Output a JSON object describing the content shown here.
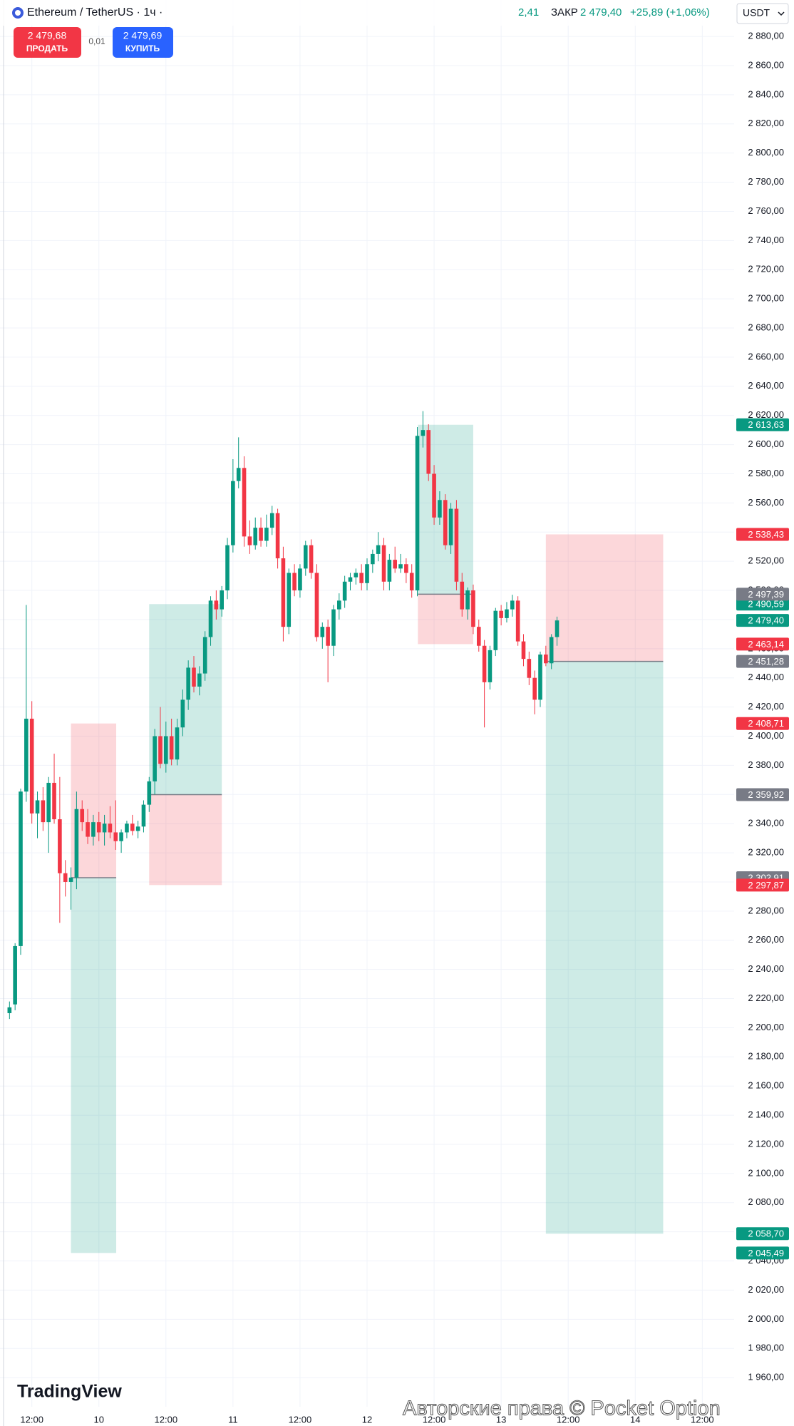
{
  "header": {
    "symbol": "Ethereum / TetherUS · 1ч ·",
    "change_fragment": "2,41",
    "close_label": "ЗАКР",
    "close": "2 479,40",
    "change": "+25,89 (+1,06%)",
    "currency": "USDT"
  },
  "trade": {
    "sell_price": "2 479,68",
    "sell": "ПРОДАТЬ",
    "spread": "0,01",
    "buy_price": "2 479,69",
    "buy": "КУПИТЬ"
  },
  "footer": {
    "logo": "TradingView",
    "watermark": "Авторские права © Pocket Option"
  },
  "chart_data": {
    "type": "candlestick",
    "x": [
      8,
      9,
      10,
      11,
      12,
      13,
      14,
      15,
      16,
      17,
      18,
      19,
      20,
      21,
      22,
      23,
      24,
      25,
      26,
      27,
      28,
      29,
      30,
      31,
      32,
      33,
      34,
      35,
      36,
      37,
      38,
      39,
      40,
      41,
      42,
      43,
      44,
      45,
      46,
      47,
      48,
      49,
      50,
      51,
      52,
      53,
      54,
      55,
      56,
      57,
      58,
      59,
      60,
      61,
      62,
      63,
      64,
      65,
      66,
      67,
      68,
      69,
      70,
      71,
      72,
      73,
      74,
      75,
      76,
      77,
      78,
      79,
      80,
      81,
      82,
      83,
      84,
      85,
      86,
      87,
      88,
      89,
      90,
      91,
      92,
      93,
      94,
      95,
      96,
      97,
      98,
      99,
      100,
      101,
      102,
      103,
      104,
      105,
      106
    ],
    "open": [
      2210,
      2216,
      2256,
      2362,
      2412,
      2347,
      2356,
      2341,
      2368,
      2343,
      2306,
      2300,
      2303,
      2350,
      2341,
      2331,
      2341,
      2334,
      2340,
      2334,
      2328,
      2334,
      2340,
      2335,
      2338,
      2353,
      2369,
      2400,
      2381,
      2400,
      2384,
      2406,
      2425,
      2447,
      2434,
      2443,
      2468,
      2493,
      2487,
      2500,
      2531,
      2575,
      2584,
      2537,
      2531,
      2543,
      2534,
      2543,
      2553,
      2522,
      2475,
      2512,
      2500,
      2515,
      2531,
      2512,
      2468,
      2475,
      2462,
      2487,
      2493,
      2506,
      2509,
      2512,
      2505,
      2518,
      2525,
      2531,
      2506,
      2521,
      2515,
      2518,
      2512,
      2500,
      2606,
      2610,
      2580,
      2550,
      2562,
      2531,
      2556,
      2506,
      2487,
      2500,
      2475,
      2462,
      2437,
      2459,
      2486,
      2481,
      2487,
      2493,
      2465,
      2453,
      2440,
      2425,
      2456,
      2450,
      2468
    ],
    "high": [
      2218,
      2258,
      2364,
      2490,
      2424,
      2362,
      2365,
      2372,
      2388,
      2372,
      2315,
      2310,
      2362,
      2356,
      2350,
      2346,
      2348,
      2346,
      2352,
      2356,
      2336,
      2342,
      2346,
      2342,
      2356,
      2372,
      2405,
      2420,
      2410,
      2412,
      2412,
      2432,
      2452,
      2455,
      2448,
      2472,
      2496,
      2500,
      2503,
      2536,
      2590,
      2605,
      2592,
      2548,
      2550,
      2550,
      2552,
      2558,
      2556,
      2530,
      2515,
      2518,
      2518,
      2534,
      2535,
      2518,
      2478,
      2480,
      2490,
      2498,
      2510,
      2512,
      2515,
      2518,
      2522,
      2528,
      2540,
      2536,
      2525,
      2530,
      2525,
      2522,
      2518,
      2612,
      2623,
      2614,
      2586,
      2568,
      2566,
      2560,
      2562,
      2512,
      2502,
      2504,
      2480,
      2466,
      2462,
      2488,
      2490,
      2492,
      2497,
      2496,
      2470,
      2458,
      2445,
      2458,
      2462,
      2470,
      2482
    ],
    "low": [
      2206,
      2212,
      2250,
      2355,
      2340,
      2330,
      2335,
      2320,
      2340,
      2272,
      2290,
      2281,
      2295,
      2335,
      2326,
      2325,
      2328,
      2325,
      2330,
      2322,
      2320,
      2330,
      2332,
      2330,
      2334,
      2348,
      2360,
      2378,
      2375,
      2380,
      2380,
      2400,
      2418,
      2430,
      2428,
      2438,
      2462,
      2480,
      2482,
      2494,
      2526,
      2570,
      2530,
      2525,
      2528,
      2530,
      2530,
      2538,
      2515,
      2465,
      2470,
      2496,
      2495,
      2510,
      2508,
      2465,
      2460,
      2437,
      2455,
      2480,
      2488,
      2500,
      2504,
      2500,
      2500,
      2512,
      2520,
      2500,
      2500,
      2512,
      2512,
      2505,
      2495,
      2496,
      2598,
      2575,
      2545,
      2545,
      2528,
      2525,
      2500,
      2482,
      2480,
      2470,
      2458,
      2406,
      2432,
      2455,
      2476,
      2478,
      2482,
      2462,
      2448,
      2435,
      2415,
      2420,
      2448,
      2446,
      2462
    ],
    "close": [
      2214,
      2256,
      2362,
      2412,
      2347,
      2356,
      2341,
      2368,
      2343,
      2306,
      2300,
      2303,
      2350,
      2341,
      2331,
      2341,
      2334,
      2340,
      2334,
      2328,
      2334,
      2340,
      2335,
      2338,
      2353,
      2369,
      2400,
      2381,
      2400,
      2384,
      2406,
      2425,
      2447,
      2434,
      2443,
      2468,
      2493,
      2487,
      2500,
      2531,
      2575,
      2584,
      2537,
      2531,
      2543,
      2534,
      2543,
      2553,
      2522,
      2475,
      2512,
      2500,
      2515,
      2531,
      2512,
      2468,
      2475,
      2462,
      2487,
      2493,
      2506,
      2509,
      2512,
      2505,
      2518,
      2525,
      2531,
      2506,
      2521,
      2515,
      2518,
      2512,
      2500,
      2606,
      2610,
      2580,
      2550,
      2562,
      2531,
      2556,
      2506,
      2487,
      2500,
      2475,
      2462,
      2437,
      2459,
      2486,
      2481,
      2487,
      2493,
      2465,
      2453,
      2440,
      2425,
      2456,
      2450,
      2468,
      2479.4
    ],
    "up_color": "#089981",
    "down_color": "#f23645",
    "xlim": [
      6.3,
      137.7
    ],
    "xticks": [
      {
        "value": 12,
        "label": "12:00"
      },
      {
        "value": 24,
        "label": "10"
      },
      {
        "value": 36,
        "label": "12:00"
      },
      {
        "value": 48,
        "label": "11"
      },
      {
        "value": 60,
        "label": "12:00"
      },
      {
        "value": 72,
        "label": "12"
      },
      {
        "value": 84,
        "label": "12:00"
      },
      {
        "value": 96,
        "label": "13"
      },
      {
        "value": 108,
        "label": "12:00"
      },
      {
        "value": 120,
        "label": "14"
      },
      {
        "value": 132,
        "label": "12:00"
      }
    ],
    "ylim": [
      1940,
      2905
    ],
    "yticks": [
      {
        "value": 1960,
        "label": "1 960,00"
      },
      {
        "value": 1980,
        "label": "1 980,00"
      },
      {
        "value": 2000,
        "label": "2 000,00"
      },
      {
        "value": 2020,
        "label": "2 020,00"
      },
      {
        "value": 2040,
        "label": "2 040,00"
      },
      {
        "value": 2060,
        "label": "2 060,00"
      },
      {
        "value": 2080,
        "label": "2 080,00"
      },
      {
        "value": 2100,
        "label": "2 100,00"
      },
      {
        "value": 2120,
        "label": "2 120,00"
      },
      {
        "value": 2140,
        "label": "2 140,00"
      },
      {
        "value": 2160,
        "label": "2 160,00"
      },
      {
        "value": 2180,
        "label": "2 180,00"
      },
      {
        "value": 2200,
        "label": "2 200,00"
      },
      {
        "value": 2220,
        "label": "2 220,00"
      },
      {
        "value": 2240,
        "label": "2 240,00"
      },
      {
        "value": 2260,
        "label": "2 260,00"
      },
      {
        "value": 2280,
        "label": "2 280,00"
      },
      {
        "value": 2300,
        "label": "2 300,00"
      },
      {
        "value": 2320,
        "label": "2 320,00"
      },
      {
        "value": 2340,
        "label": "2 340,00"
      },
      {
        "value": 2360,
        "label": "2 360,00"
      },
      {
        "value": 2380,
        "label": "2 380,00"
      },
      {
        "value": 2400,
        "label": "2 400,00"
      },
      {
        "value": 2420,
        "label": "2 420,00"
      },
      {
        "value": 2440,
        "label": "2 440,00"
      },
      {
        "value": 2460,
        "label": "2 460,00"
      },
      {
        "value": 2480,
        "label": "2 480,00"
      },
      {
        "value": 2500,
        "label": "2 500,00"
      },
      {
        "value": 2520,
        "label": "2 520,00"
      },
      {
        "value": 2540,
        "label": "2 540,00"
      },
      {
        "value": 2560,
        "label": "2 560,00"
      },
      {
        "value": 2580,
        "label": "2 580,00"
      },
      {
        "value": 2600,
        "label": "2 600,00"
      },
      {
        "value": 2620,
        "label": "2 620,00"
      },
      {
        "value": 2640,
        "label": "2 640,00"
      },
      {
        "value": 2660,
        "label": "2 660,00"
      },
      {
        "value": 2680,
        "label": "2 680,00"
      },
      {
        "value": 2700,
        "label": "2 700,00"
      },
      {
        "value": 2720,
        "label": "2 720,00"
      },
      {
        "value": 2740,
        "label": "2 740,00"
      },
      {
        "value": 2760,
        "label": "2 760,00"
      },
      {
        "value": 2780,
        "label": "2 780,00"
      },
      {
        "value": 2800,
        "label": "2 800,00"
      },
      {
        "value": 2820,
        "label": "2 820,00"
      },
      {
        "value": 2840,
        "label": "2 840,00"
      },
      {
        "value": 2860,
        "label": "2 860,00"
      },
      {
        "value": 2880,
        "label": "2 880,00"
      }
    ],
    "grid": true,
    "last_price": {
      "value": 2479.4,
      "label": "2 479,40"
    },
    "target_color": "#089981",
    "stop_color": "#f23645",
    "entry_color": "#787b86",
    "positions": [
      {
        "x": [
          19,
          27.1
        ],
        "entry": {
          "value": 2302.91,
          "label": "2 302,91"
        },
        "stop": {
          "value": 2408.71,
          "label": "2 408,71"
        },
        "target": {
          "value": 2045.49,
          "label": "2 045,49"
        }
      },
      {
        "x": [
          33,
          46
        ],
        "entry": {
          "value": 2359.92,
          "label": "2 359,92"
        },
        "stop": {
          "value": 2297.87,
          "label": "2 297,87"
        },
        "target": {
          "value": 2490.59,
          "label": "2 490,59"
        }
      },
      {
        "x": [
          81.1,
          91
        ],
        "entry": {
          "value": 2497.39,
          "label": "2 497,39"
        },
        "stop": {
          "value": 2463.14,
          "label": "2 463,14"
        },
        "target": {
          "value": 2613.63,
          "label": "2 613,63"
        }
      },
      {
        "x": [
          104,
          125
        ],
        "entry": {
          "value": 2451.28,
          "label": "2 451,28"
        },
        "stop": {
          "value": 2538.43,
          "label": "2 538,43"
        },
        "target": {
          "value": 2058.7,
          "label": "2 058,70"
        }
      }
    ]
  }
}
